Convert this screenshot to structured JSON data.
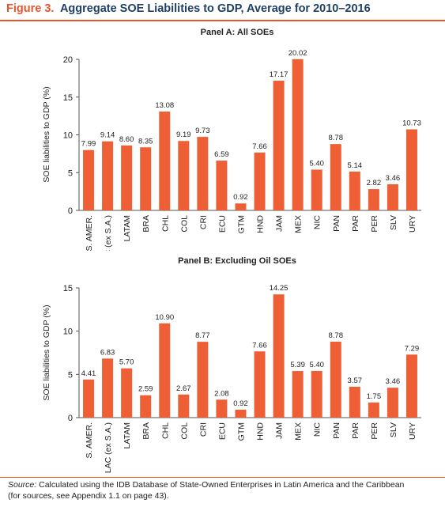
{
  "figure": {
    "number": "Figure 3.",
    "title": "Aggregate SOE Liabilities to GDP, Average for 2010–2016"
  },
  "source": {
    "label": "Source:",
    "text": "Calculated using the IDB Database of State-Owned Enterprises in Latin America and the Caribbean",
    "text2": "(for sources, see Appendix 1.1 on page 43)."
  },
  "colors": {
    "bar": "#ee5f35",
    "accent": "#e9542a",
    "title": "#1f3f66"
  },
  "chart_data": [
    {
      "type": "bar",
      "title": "Panel A: All SOEs",
      "xlabel": "",
      "ylabel": "SOE liabilities to GDP (%)",
      "ylim": [
        0,
        20
      ],
      "yticks": [
        0,
        5,
        10,
        15,
        20
      ],
      "grid": false,
      "categories": [
        "S. AMER.",
        "LAC (ex S.A.)",
        "LATAM",
        "BRA",
        "CHL",
        "COL",
        "CRI",
        "ECU",
        "GTM",
        "HND",
        "JAM",
        "MEX",
        "NIC",
        "PAN",
        "PAR",
        "PER",
        "SLV",
        "URY"
      ],
      "values": [
        7.99,
        9.14,
        8.6,
        8.35,
        13.08,
        9.19,
        9.73,
        6.59,
        0.92,
        7.66,
        17.17,
        20.02,
        5.4,
        8.78,
        5.14,
        2.82,
        3.46,
        10.73
      ],
      "labels": [
        "7.99",
        "9.14",
        "8.60",
        "8.35",
        "13.08",
        "9.19",
        "9.73",
        "6.59",
        "0.92",
        "7.66",
        "17.17",
        "20.02",
        "5.40",
        "8.78",
        "5.14",
        "2.82",
        "3.46",
        "10.73"
      ]
    },
    {
      "type": "bar",
      "title": "Panel B: Excluding Oil SOEs",
      "xlabel": "",
      "ylabel": "SOE liabilities to GDP (%)",
      "ylim": [
        0,
        15
      ],
      "yticks": [
        0,
        5,
        10,
        15
      ],
      "grid": false,
      "categories": [
        "S. AMER.",
        "LAC (ex S.A.)",
        "LATAM",
        "BRA",
        "CHL",
        "COL",
        "CRI",
        "ECU",
        "GTM",
        "HND",
        "JAM",
        "MEX",
        "NIC",
        "PAN",
        "PAR",
        "PER",
        "SLV",
        "URY"
      ],
      "values": [
        4.41,
        6.83,
        5.7,
        2.59,
        10.9,
        2.67,
        8.77,
        2.08,
        0.92,
        7.66,
        14.25,
        5.39,
        5.4,
        8.78,
        3.57,
        1.75,
        3.46,
        7.29
      ],
      "labels": [
        "4.41",
        "6.83",
        "5.70",
        "2.59",
        "10.90",
        "2.67",
        "8.77",
        "2.08",
        "0.92",
        "7.66",
        "14.25",
        "5.39",
        "5.40",
        "8.78",
        "3.57",
        "1.75",
        "3.46",
        "7.29"
      ]
    }
  ]
}
